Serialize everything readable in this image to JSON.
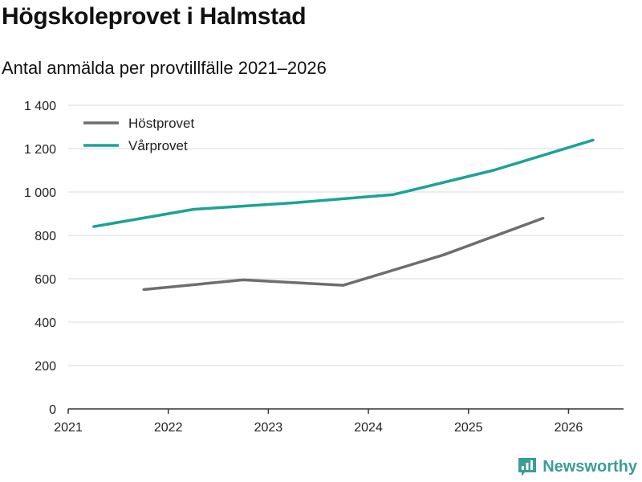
{
  "title": "Högskoleprovet i Halmstad",
  "subtitle": "Antal anmälda per provtillfälle 2021–2026",
  "brand": {
    "name": "Newsworthy"
  },
  "colors": {
    "hostprovet": "#6e6d72",
    "varprovet": "#1aa397",
    "grid": "#d9d9d9",
    "axis": "#333333"
  },
  "chart_data": {
    "type": "line",
    "title": "Högskoleprovet i Halmstad",
    "subtitle": "Antal anmälda per provtillfälle 2021–2026",
    "xlabel": "",
    "ylabel": "",
    "xlim": [
      2021,
      2026.55
    ],
    "ylim": [
      0,
      1400
    ],
    "x_ticks": [
      2021,
      2022,
      2023,
      2024,
      2025,
      2026
    ],
    "x_tick_labels": [
      "2021",
      "2022",
      "2023",
      "2024",
      "2025",
      "2026"
    ],
    "y_ticks": [
      0,
      200,
      400,
      600,
      800,
      1000,
      1200,
      1400
    ],
    "y_tick_labels": [
      "0",
      "200",
      "400",
      "600",
      "800",
      "1 000",
      "1 200",
      "1 400"
    ],
    "grid": true,
    "legend_position": "top-left",
    "series": [
      {
        "name": "Höstprovet",
        "color": "#6e6d72",
        "points": [
          {
            "x": 2021.75,
            "y": 550
          },
          {
            "x": 2022.75,
            "y": 595
          },
          {
            "x": 2023.75,
            "y": 570
          },
          {
            "x": 2024.75,
            "y": 710
          },
          {
            "x": 2025.75,
            "y": 880
          }
        ]
      },
      {
        "name": "Vårprovet",
        "color": "#1aa397",
        "points": [
          {
            "x": 2021.25,
            "y": 840
          },
          {
            "x": 2022.25,
            "y": 920
          },
          {
            "x": 2023.25,
            "y": 950
          },
          {
            "x": 2024.25,
            "y": 988
          },
          {
            "x": 2025.25,
            "y": 1100
          },
          {
            "x": 2026.25,
            "y": 1240
          }
        ]
      }
    ]
  }
}
